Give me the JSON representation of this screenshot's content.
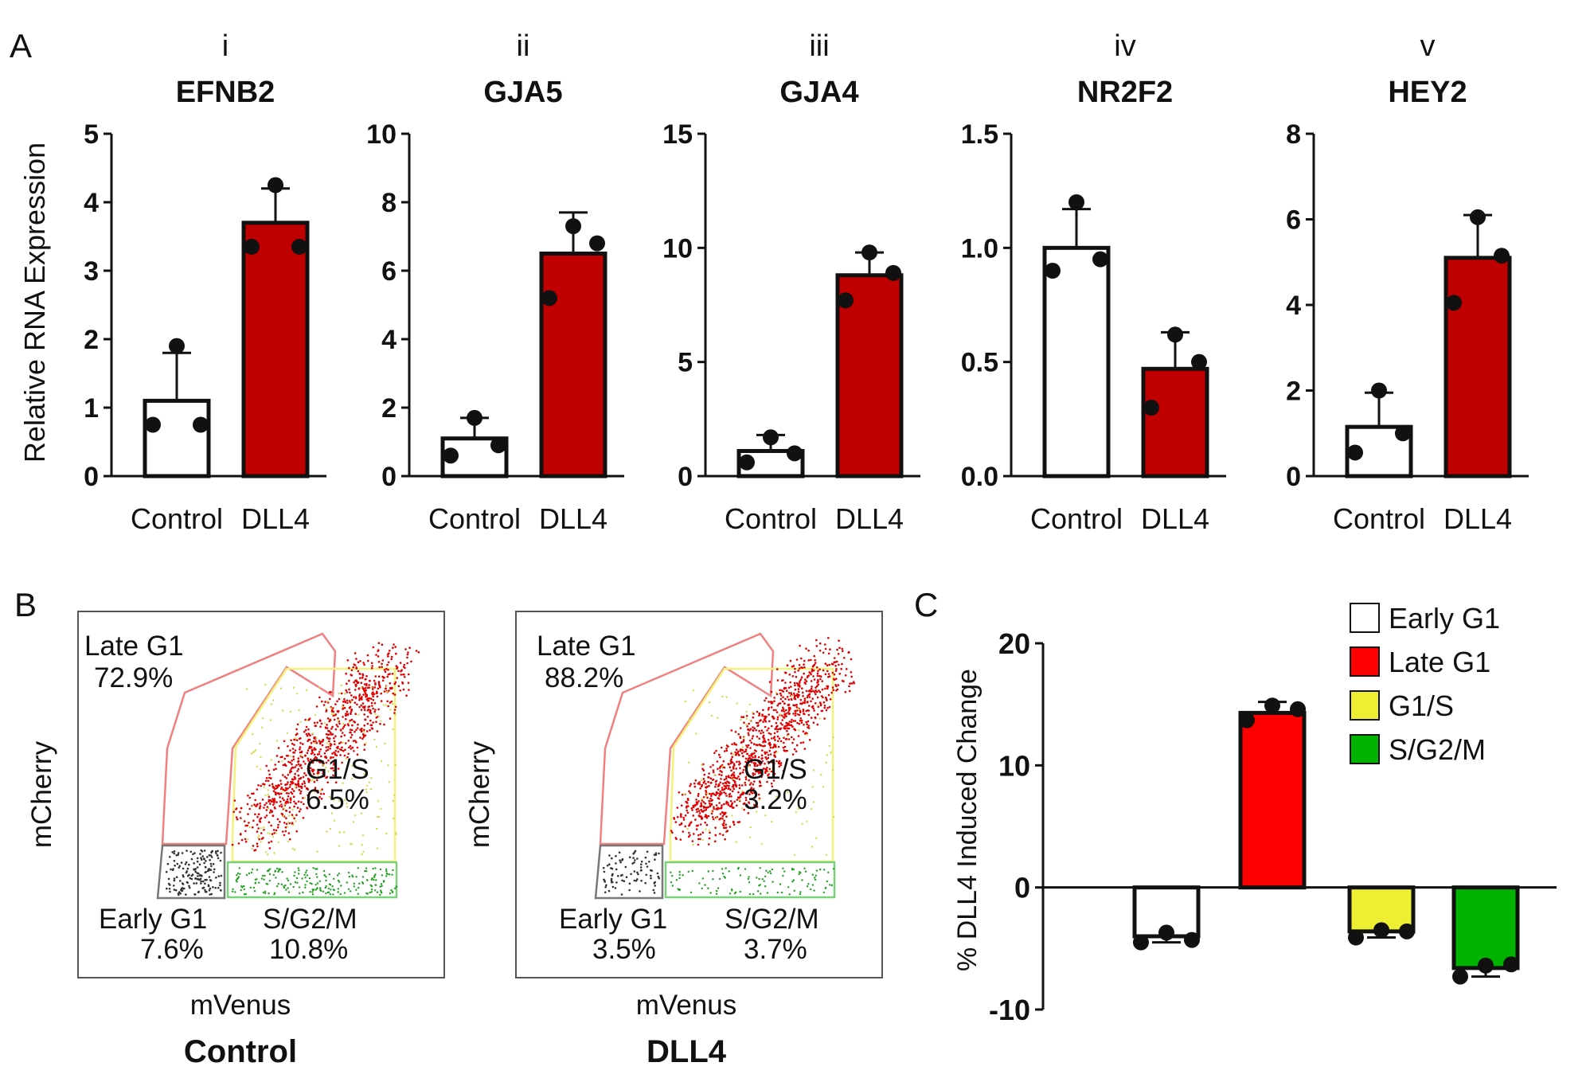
{
  "panels": {
    "A": "A",
    "B": "B",
    "C": "C"
  },
  "colors": {
    "dll4": "#c00000",
    "control": "#ffffff",
    "late_g1_gate": "#f08080",
    "g1s_gate": "#f2f27a",
    "sg2m_gate": "#7ad17a",
    "early_g1_gate": "#777777",
    "early_g1": "#ffffff",
    "late_g1": "#ff0000",
    "g1s": "#eeee33",
    "sg2m": "#00b300"
  },
  "chart_data": [
    {
      "type": "bar",
      "roman": "i",
      "title": "EFNB2",
      "ylabel": "Relative RNA Expression",
      "categories": [
        "Control",
        "DLL4"
      ],
      "values": [
        1.1,
        3.7
      ],
      "errors": [
        0.7,
        0.5
      ],
      "points": [
        [
          0.75,
          0.75,
          1.9
        ],
        [
          3.35,
          3.35,
          4.25
        ]
      ],
      "ylim": [
        0,
        5
      ],
      "yticks": [
        "0",
        "1",
        "2",
        "3",
        "4",
        "5"
      ],
      "ytick_values": [
        0,
        1,
        2,
        3,
        4,
        5
      ]
    },
    {
      "type": "bar",
      "roman": "ii",
      "title": "GJA5",
      "categories": [
        "Control",
        "DLL4"
      ],
      "values": [
        1.1,
        6.5
      ],
      "errors": [
        0.6,
        1.2
      ],
      "points": [
        [
          0.6,
          0.9,
          1.7
        ],
        [
          5.2,
          6.8,
          7.3
        ]
      ],
      "ylim": [
        0,
        10
      ],
      "yticks": [
        "0",
        "2",
        "4",
        "6",
        "8",
        "10"
      ],
      "ytick_values": [
        0,
        2,
        4,
        6,
        8,
        10
      ]
    },
    {
      "type": "bar",
      "roman": "iii",
      "title": "GJA4",
      "categories": [
        "Control",
        "DLL4"
      ],
      "values": [
        1.1,
        8.8
      ],
      "errors": [
        0.7,
        1.0
      ],
      "points": [
        [
          0.6,
          1.0,
          1.7
        ],
        [
          7.7,
          8.9,
          9.8
        ]
      ],
      "ylim": [
        0,
        15
      ],
      "yticks": [
        "0",
        "5",
        "10",
        "15"
      ],
      "ytick_values": [
        0,
        5,
        10,
        15
      ]
    },
    {
      "type": "bar",
      "roman": "iv",
      "title": "NR2F2",
      "categories": [
        "Control",
        "DLL4"
      ],
      "values": [
        1.0,
        0.47
      ],
      "errors": [
        0.17,
        0.16
      ],
      "points": [
        [
          0.9,
          0.95,
          1.2
        ],
        [
          0.3,
          0.5,
          0.62
        ]
      ],
      "ylim": [
        0,
        1.5
      ],
      "yticks": [
        "0.0",
        "0.5",
        "1.0",
        "1.5"
      ],
      "ytick_values": [
        0,
        0.5,
        1.0,
        1.5
      ]
    },
    {
      "type": "bar",
      "roman": "v",
      "title": "HEY2",
      "categories": [
        "Control",
        "DLL4"
      ],
      "values": [
        1.15,
        5.1
      ],
      "errors": [
        0.8,
        1.0
      ],
      "points": [
        [
          0.55,
          1.0,
          2.0
        ],
        [
          4.05,
          5.15,
          6.05
        ]
      ],
      "ylim": [
        0,
        8
      ],
      "yticks": [
        "0",
        "2",
        "4",
        "6",
        "8"
      ],
      "ytick_values": [
        0,
        2,
        4,
        6,
        8
      ]
    },
    {
      "type": "bar",
      "ylabel": "% DLL4 Induced Change",
      "categories": [
        "Early G1",
        "Late G1",
        "G1/S",
        "S/G2/M"
      ],
      "values": [
        -4.0,
        14.3,
        -3.6,
        -6.6
      ],
      "errors": [
        0.5,
        0.9,
        0.5,
        0.7
      ],
      "points": [
        [
          -4.5,
          -3.7,
          -4.3
        ],
        [
          13.7,
          14.9,
          14.6
        ],
        [
          -4.1,
          -3.5,
          -3.6
        ],
        [
          -7.3,
          -6.4,
          -6.3
        ]
      ],
      "ylim": [
        -10,
        20
      ],
      "yticks": [
        "-10",
        "0",
        "10",
        "20"
      ],
      "ytick_values": [
        -10,
        0,
        10,
        20
      ],
      "legend": [
        "Early G1",
        "Late G1",
        "G1/S",
        "S/G2/M"
      ]
    }
  ],
  "flow": [
    {
      "label": "Control",
      "xlabel": "mVenus",
      "ylabel": "mCherry",
      "late_g1": {
        "name": "Late G1",
        "pct": "72.9%"
      },
      "g1s": {
        "name": "G1/S",
        "pct": "6.5%"
      },
      "early_g1": {
        "name": "Early G1",
        "pct": "7.6%"
      },
      "sg2m": {
        "name": "S/G2/M",
        "pct": "10.8%"
      }
    },
    {
      "label": "DLL4",
      "xlabel": "mVenus",
      "ylabel": "mCherry",
      "late_g1": {
        "name": "Late G1",
        "pct": "88.2%"
      },
      "g1s": {
        "name": "G1/S",
        "pct": "3.2%"
      },
      "early_g1": {
        "name": "Early G1",
        "pct": "3.5%"
      },
      "sg2m": {
        "name": "S/G2/M",
        "pct": "3.7%"
      }
    }
  ]
}
